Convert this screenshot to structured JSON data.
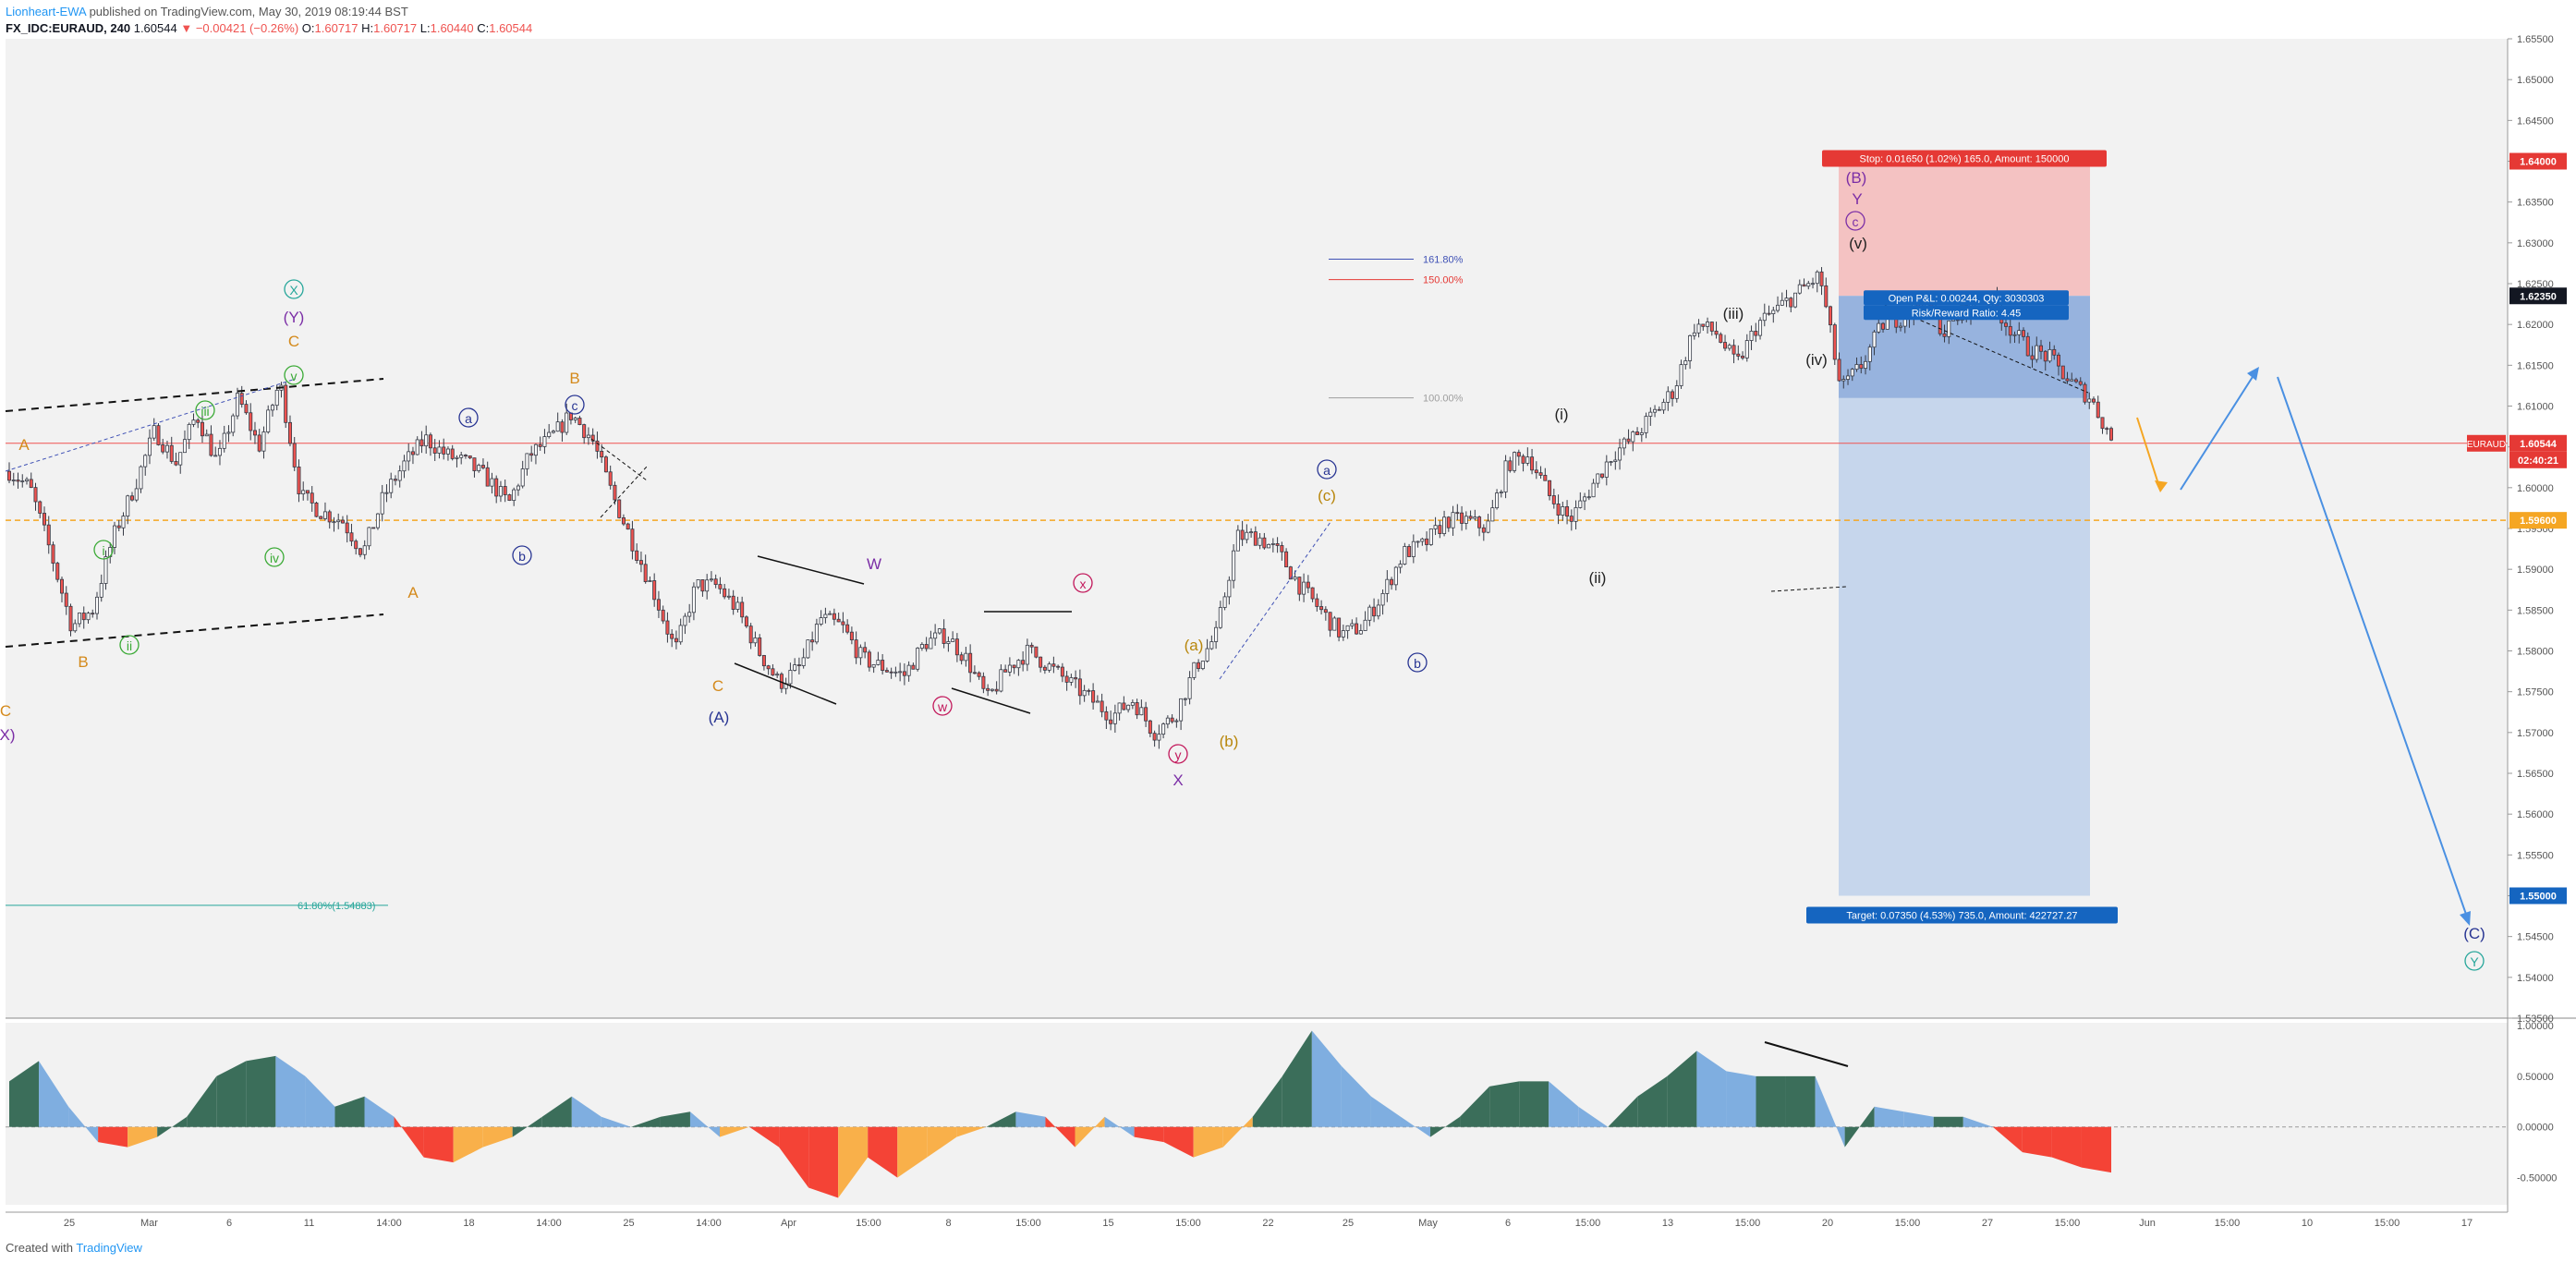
{
  "header": {
    "author": "Lionheart-EWA",
    "published_text": "published on TradingView.com, May 30, 2019 08:19:44 BST",
    "symbol": "FX_IDC:EURAUD, 240",
    "price": "1.60544",
    "change": "−0.00421 (−0.26%)",
    "open_label": "O:",
    "open": "1.60717",
    "high_label": "H:",
    "high": "1.60717",
    "low_label": "L:",
    "low": "1.60440",
    "close_label": "C:",
    "close": "1.60544",
    "down_arrow": "▼"
  },
  "footer": {
    "created_with": "Created with",
    "brand": "TradingView"
  },
  "colors": {
    "bull": "#26a69a",
    "bear": "#ef5350",
    "body": "#363a45",
    "stop_zone": "#f4c2c2",
    "target_zone": "#c6d6ec",
    "entry_zone": "#97b3de",
    "orange": "#f5a623",
    "blue": "#4a90e2",
    "hist_up_dark": "#3b6e5a",
    "hist_up_light": "#7faee0",
    "hist_down_red": "#f44336",
    "hist_down_orange": "#f9b04a"
  },
  "chart_data": {
    "type": "candlestick",
    "ylim": [
      1.535,
      1.655
    ],
    "y_ticks": [
      "1.65500",
      "1.65000",
      "1.64500",
      "1.64000",
      "1.63500",
      "1.63000",
      "1.62500",
      "1.62000",
      "1.61500",
      "1.61000",
      "1.60500",
      "1.60000",
      "1.59500",
      "1.59000",
      "1.58500",
      "1.58000",
      "1.57500",
      "1.57000",
      "1.56500",
      "1.56000",
      "1.55500",
      "1.55000",
      "1.54500",
      "1.54000",
      "1.53500"
    ],
    "x_ticks": [
      "25",
      "Mar",
      "6",
      "11",
      "14:00",
      "18",
      "14:00",
      "25",
      "14:00",
      "Apr",
      "15:00",
      "8",
      "15:00",
      "15",
      "15:00",
      "22",
      "25",
      "May",
      "6",
      "15:00",
      "13",
      "15:00",
      "20",
      "15:00",
      "27",
      "15:00",
      "Jun",
      "15:00",
      "10",
      "15:00",
      "17"
    ],
    "price_path": [
      [
        1.602,
        1.6
      ],
      [
        1.592,
        1.583
      ],
      [
        1.585,
        1.594
      ],
      [
        1.6,
        1.607
      ],
      [
        1.603,
        1.609
      ],
      [
        1.603,
        1.611
      ],
      [
        1.605,
        1.613
      ],
      [
        1.599,
        1.597
      ],
      [
        1.596,
        1.592
      ],
      [
        1.599,
        1.603
      ],
      [
        1.606,
        1.604
      ],
      [
        1.603,
        1.601
      ],
      [
        1.598,
        1.604
      ],
      [
        1.606,
        1.609
      ],
      [
        1.606,
        1.599
      ],
      [
        1.593,
        1.587
      ],
      [
        1.58,
        1.588
      ],
      [
        1.588,
        1.585
      ],
      [
        1.58,
        1.576
      ],
      [
        1.578,
        1.584
      ],
      [
        1.583,
        1.579
      ],
      [
        1.578,
        1.577
      ],
      [
        1.581,
        1.582
      ],
      [
        1.579,
        1.574
      ],
      [
        1.578,
        1.58
      ],
      [
        1.578,
        1.576
      ],
      [
        1.574,
        1.572
      ],
      [
        1.574,
        1.57
      ],
      [
        1.572,
        1.578
      ],
      [
        1.582,
        1.594
      ],
      [
        1.594,
        1.592
      ],
      [
        1.588,
        1.585
      ],
      [
        1.582,
        1.583
      ],
      [
        1.587,
        1.592
      ],
      [
        1.593,
        1.596
      ],
      [
        1.596,
        1.595
      ],
      [
        1.603,
        1.604
      ],
      [
        1.599,
        1.596
      ],
      [
        1.6,
        1.604
      ],
      [
        1.606,
        1.609
      ],
      [
        1.612,
        1.62
      ],
      [
        1.619,
        1.615
      ],
      [
        1.62,
        1.622
      ],
      [
        1.624,
        1.626
      ],
      [
        1.612,
        1.615
      ],
      [
        1.62,
        1.621
      ],
      [
        1.623,
        1.619
      ],
      [
        1.622,
        1.624
      ],
      [
        1.62,
        1.617
      ],
      [
        1.616,
        1.613
      ],
      [
        1.611,
        1.606
      ]
    ],
    "levels": {
      "last": 1.60544,
      "last_label": "EURAUD",
      "last_price_label": "1.60544",
      "countdown": "02:40:21",
      "stop": 1.64,
      "stop_label": "1.64000",
      "entry": 1.6235,
      "entry_label": "1.62350",
      "target": 1.55,
      "target_label": "1.55000",
      "orange": 1.596,
      "orange_label": "1.59600",
      "fib618": 1.54883,
      "fib618_label": "61.80%(1.54883)"
    },
    "position": {
      "stop_text": "Stop: 0.01650 (1.02%) 165.0, Amount: 150000",
      "open_text": "Open P&L: 0.00244, Qty: 3030303",
      "ratio_text": "Risk/Reward Ratio: 4.45",
      "target_text": "Target: 0.07350 (4.53%) 735.0, Amount: 422727.27"
    },
    "fib_labels": [
      "161.80%",
      "150.00%",
      "100.00%"
    ],
    "wave_labels": [
      {
        "t": "A",
        "c": "#d48a1c"
      },
      {
        "t": "B",
        "c": "#d48a1c"
      },
      {
        "t": "i",
        "c": "#3aaa35"
      },
      {
        "t": "ii",
        "c": "#3aaa35"
      },
      {
        "t": "iii",
        "c": "#3aaa35"
      },
      {
        "t": "iv",
        "c": "#3aaa35"
      },
      {
        "t": "v",
        "c": "#3aaa35"
      },
      {
        "t": "C",
        "c": "#d48a1c"
      },
      {
        "t": "(Y)",
        "c": "#7b2ea6"
      },
      {
        "t": "X",
        "c": "#26a69a"
      },
      {
        "t": "A",
        "c": "#d48a1c"
      },
      {
        "t": "a",
        "c": "#283593"
      },
      {
        "t": "b",
        "c": "#283593"
      },
      {
        "t": "c",
        "c": "#283593"
      },
      {
        "t": "B",
        "c": "#d48a1c"
      },
      {
        "t": "C",
        "c": "#d48a1c"
      },
      {
        "t": "(A)",
        "c": "#283593"
      },
      {
        "t": "W",
        "c": "#7b2ea6"
      },
      {
        "t": "w",
        "c": "#c2185b"
      },
      {
        "t": "x",
        "c": "#c2185b"
      },
      {
        "t": "y",
        "c": "#c2185b"
      },
      {
        "t": "X",
        "c": "#7b2ea6"
      },
      {
        "t": "(a)",
        "c": "#b8860b"
      },
      {
        "t": "(b)",
        "c": "#b8860b"
      },
      {
        "t": "(c)",
        "c": "#b8860b"
      },
      {
        "t": "a",
        "c": "#283593"
      },
      {
        "t": "b",
        "c": "#283593"
      },
      {
        "t": "(i)",
        "c": "#222"
      },
      {
        "t": "(ii)",
        "c": "#222"
      },
      {
        "t": "(iii)",
        "c": "#222"
      },
      {
        "t": "(iv)",
        "c": "#222"
      },
      {
        "t": "(v)",
        "c": "#222"
      },
      {
        "t": "c",
        "c": "#7b2ea6"
      },
      {
        "t": "Y",
        "c": "#7b2ea6"
      },
      {
        "t": "(B)",
        "c": "#7b2ea6"
      },
      {
        "t": "(C)",
        "c": "#283593"
      },
      {
        "t": "Y",
        "c": "#26a69a"
      },
      {
        "t": "C",
        "c": "#d48a1c"
      },
      {
        "t": "X)",
        "c": "#7b2ea6"
      }
    ],
    "oscillator": {
      "ylim": [
        -0.75,
        1.0
      ],
      "y_ticks": [
        "1.00000",
        "0.50000",
        "0.00000",
        "-0.50000"
      ],
      "values": [
        0.45,
        0.65,
        0.2,
        -0.15,
        -0.2,
        -0.1,
        0.1,
        0.5,
        0.65,
        0.7,
        0.5,
        0.2,
        0.3,
        0.1,
        -0.3,
        -0.35,
        -0.2,
        -0.1,
        0.1,
        0.3,
        0.1,
        0.0,
        0.1,
        0.15,
        -0.1,
        0.0,
        -0.2,
        -0.6,
        -0.7,
        -0.3,
        -0.5,
        -0.3,
        -0.1,
        0.0,
        0.15,
        0.1,
        -0.2,
        0.1,
        -0.1,
        -0.15,
        -0.3,
        -0.2,
        0.1,
        0.5,
        0.95,
        0.6,
        0.3,
        0.1,
        -0.1,
        0.1,
        0.4,
        0.45,
        0.45,
        0.2,
        0.0,
        0.3,
        0.5,
        0.75,
        0.55,
        0.5,
        0.5,
        0.5,
        -0.2,
        0.2,
        0.15,
        0.1,
        0.1,
        0.0,
        -0.25,
        -0.3,
        -0.4,
        -0.45
      ]
    }
  }
}
